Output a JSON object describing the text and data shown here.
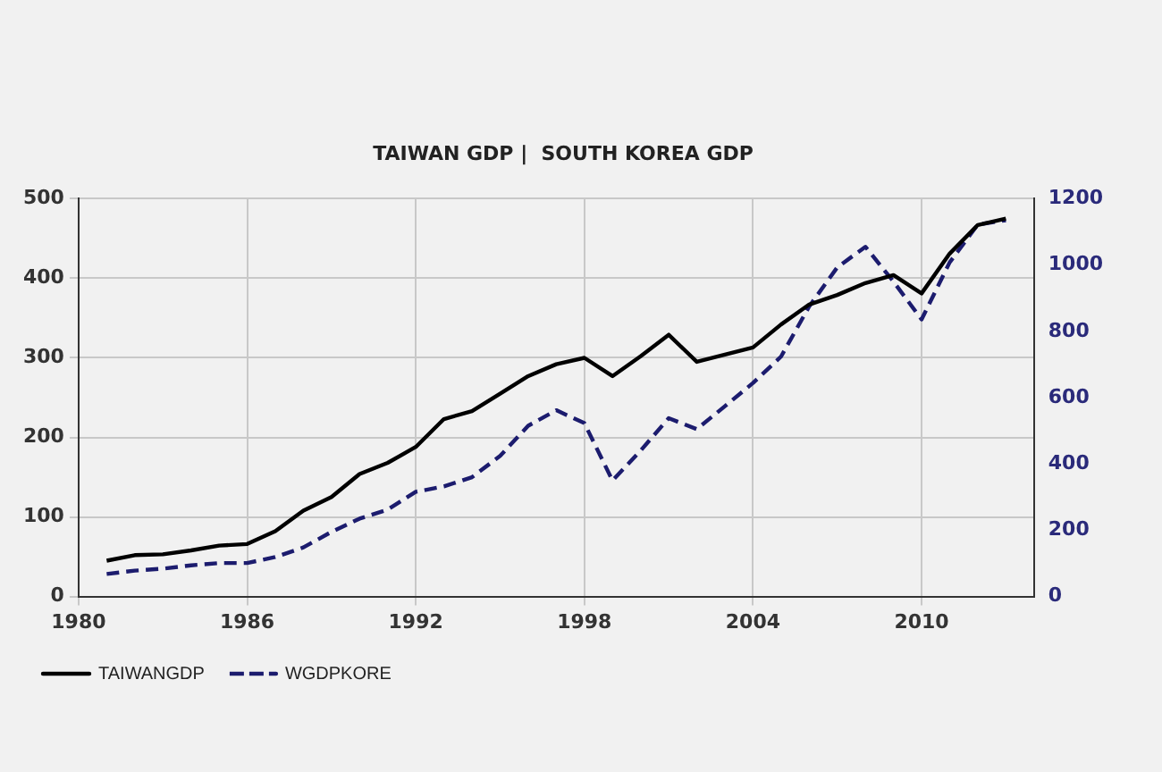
{
  "chart_data": {
    "type": "line",
    "title": "TAIWAN GDP |  SOUTH KOREA GDP",
    "x": [
      1981,
      1982,
      1983,
      1984,
      1985,
      1986,
      1987,
      1988,
      1989,
      1990,
      1991,
      1992,
      1993,
      1994,
      1995,
      1996,
      1997,
      1998,
      1999,
      2000,
      2001,
      2002,
      2003,
      2004,
      2005,
      2006,
      2007,
      2008,
      2009,
      2010,
      2011,
      2012,
      2013
    ],
    "series": [
      {
        "name": "TAIWANGDP",
        "color": "#000000",
        "line_style": "solid",
        "values": [
          45,
          52,
          53,
          58,
          64,
          66,
          82,
          108,
          125,
          154,
          168,
          188,
          223,
          233,
          255,
          277,
          292,
          300,
          277,
          302,
          329,
          295,
          304,
          313,
          342,
          367,
          379,
          394,
          404,
          381,
          431,
          467,
          475
        ]
      },
      {
        "name": "WGDPKORE",
        "color": "#1c1c6e",
        "line_style": "dashed",
        "axis": "y2",
        "values": [
          68,
          78,
          84,
          94,
          101,
          101,
          119,
          148,
          195,
          235,
          262,
          316,
          332,
          360,
          424,
          515,
          562,
          523,
          350,
          440,
          538,
          505,
          574,
          644,
          724,
          875,
          993,
          1055,
          950,
          836,
          1008,
          1122,
          1135
        ]
      }
    ],
    "xlim": [
      1980,
      2014
    ],
    "xticks": [
      1980,
      1986,
      1992,
      1998,
      2004,
      2010
    ],
    "ylim": [
      0,
      500
    ],
    "yticks": [
      0,
      100,
      200,
      300,
      400,
      500
    ],
    "y2lim": [
      0,
      1200
    ],
    "y2ticks": [
      0,
      200,
      400,
      600,
      800,
      1000,
      1200
    ],
    "grid": true,
    "legend": "bottom left",
    "marker": "none"
  }
}
